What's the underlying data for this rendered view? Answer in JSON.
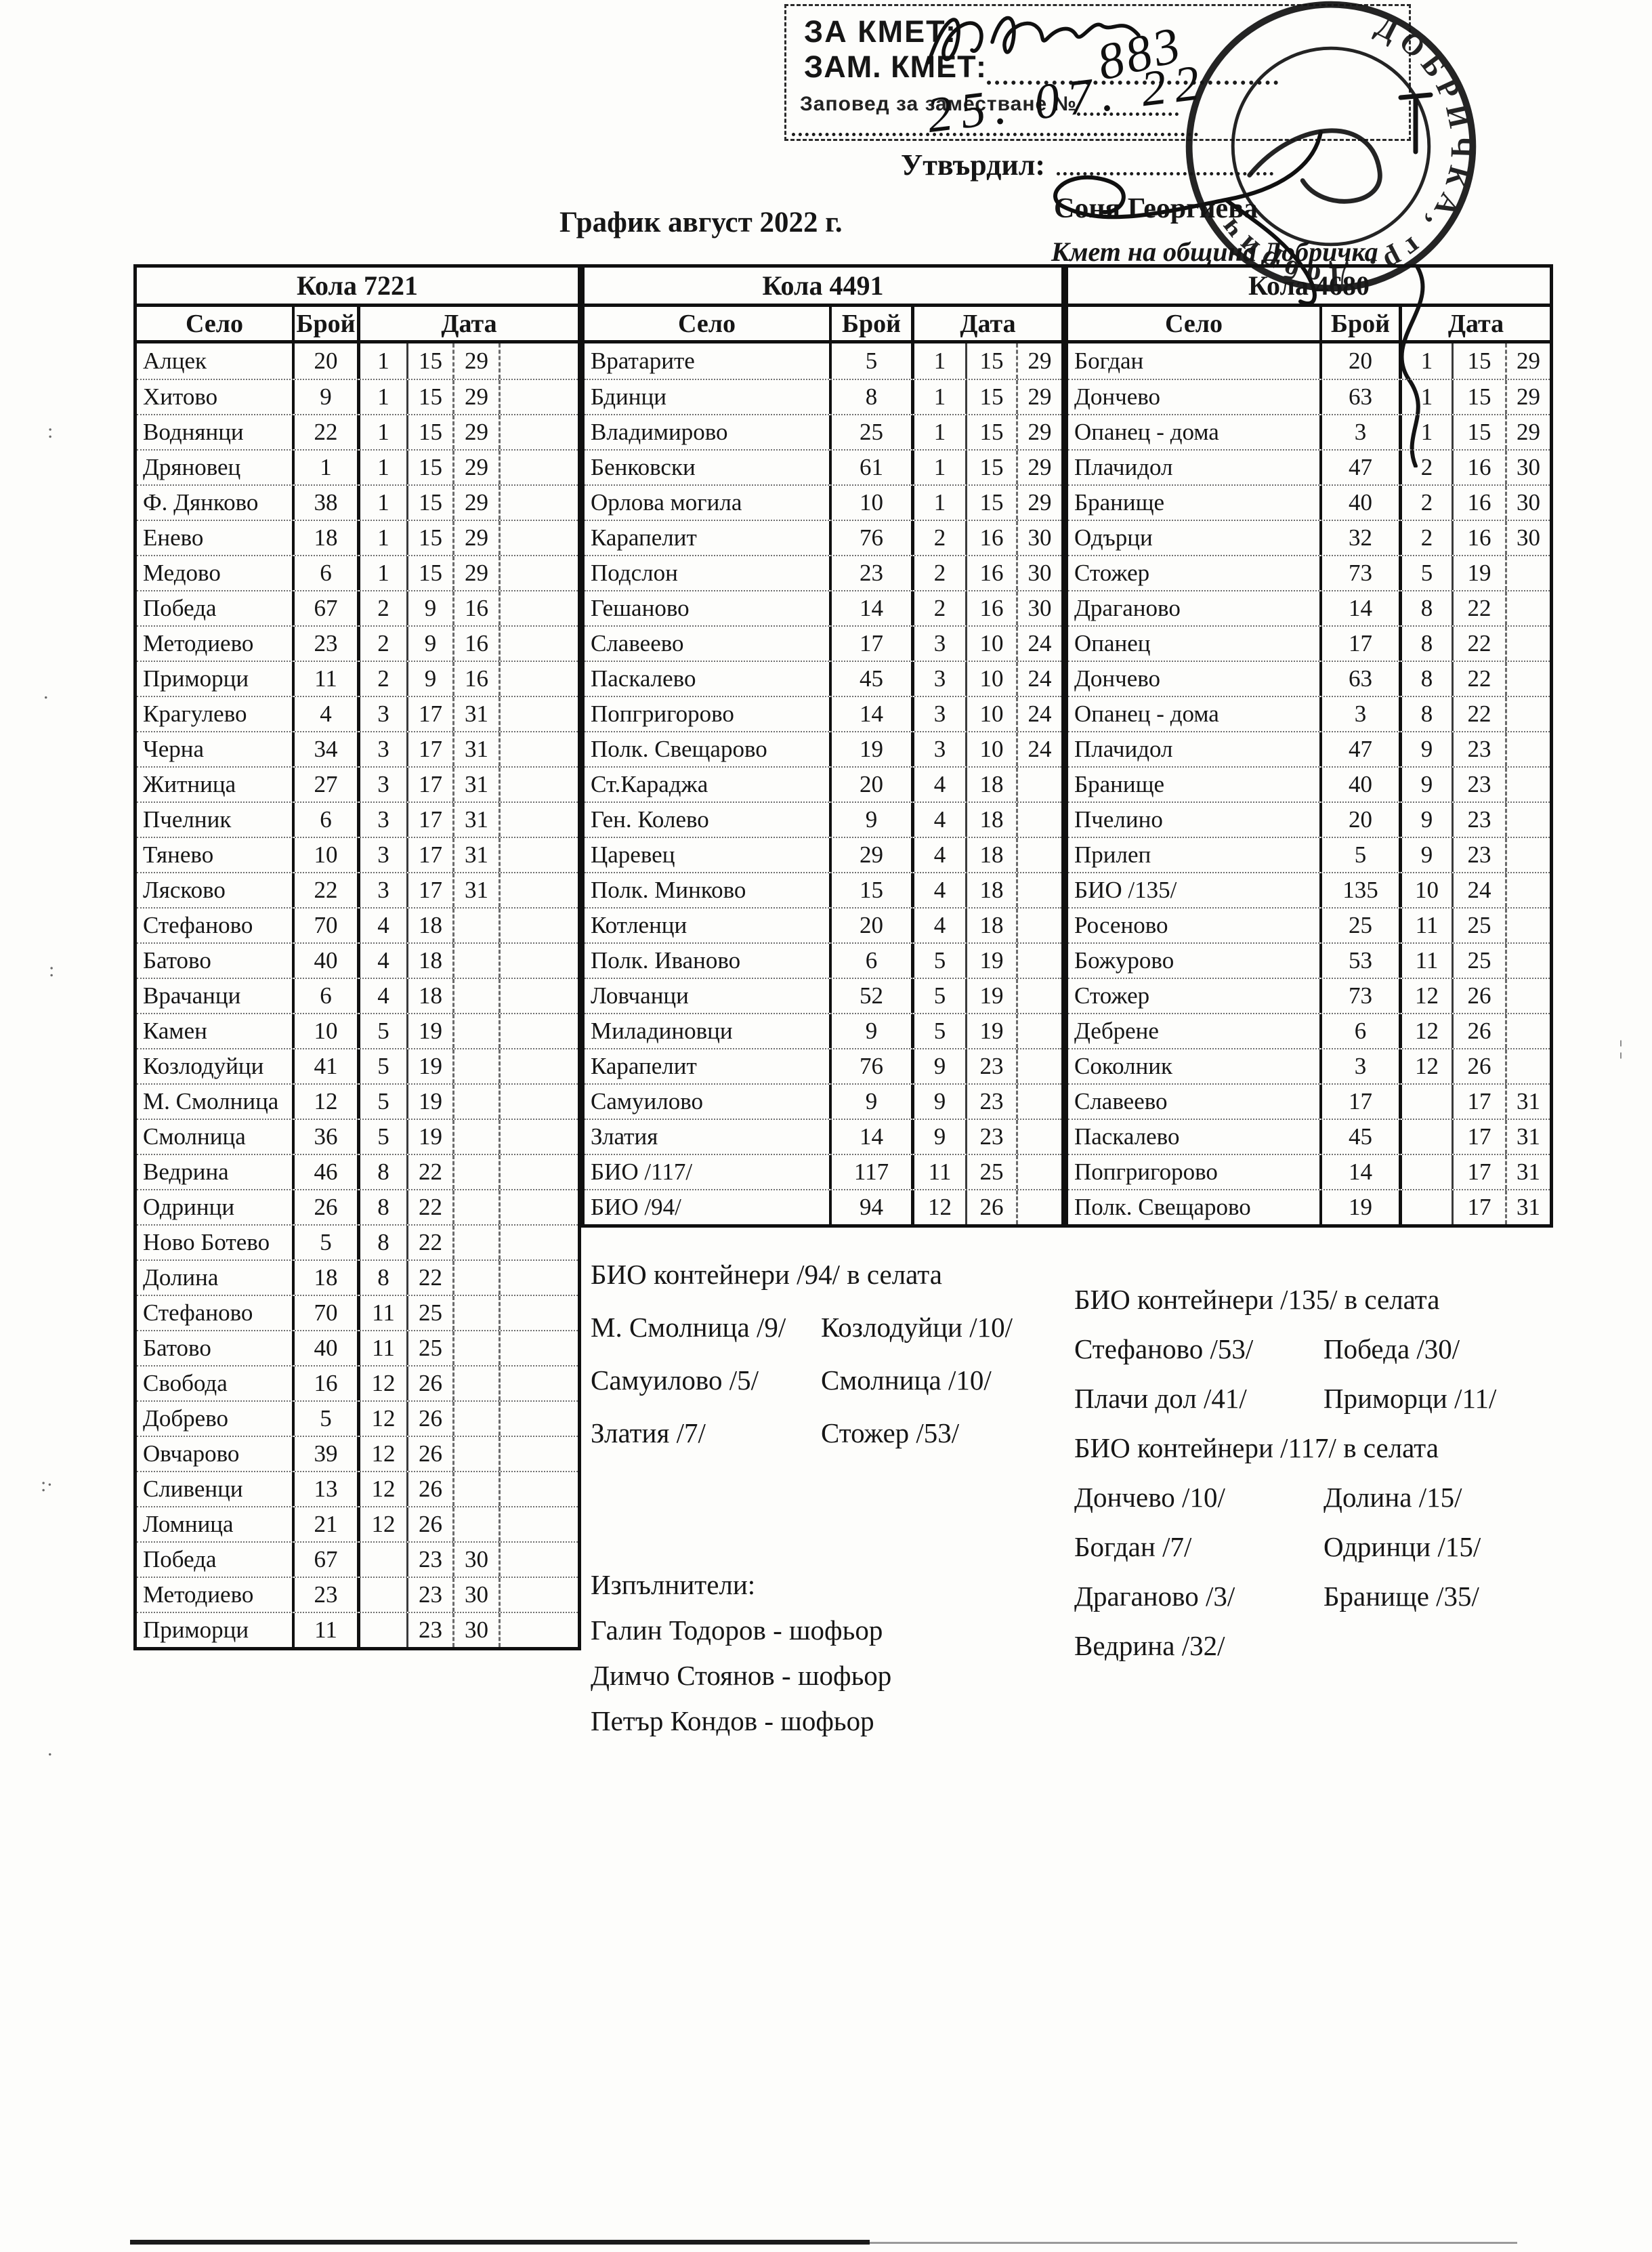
{
  "page": {
    "title": "График август 2022 г."
  },
  "stamp_box": {
    "line1": "ЗА КМЕТ:",
    "line2": "ЗАМ. КМЕТ:",
    "line3": "Заповед за заместване №"
  },
  "handwriting": {
    "order_no": "883",
    "date": "25. 07. 22"
  },
  "approval": {
    "label": "Утвърдил:",
    "name": "Соня Георгиева",
    "title": "Кмет  на община Добричка"
  },
  "round_stamp": {
    "ring_text": "ДОБРИЧКА, гр. Добрич"
  },
  "tables": [
    {
      "title": "Кола 7221",
      "columns": [
        "Село",
        "Брой",
        "Дата"
      ],
      "rows": [
        {
          "village": "Алцек",
          "count": "20",
          "dates": [
            "1",
            "15",
            "29",
            ""
          ]
        },
        {
          "village": "Хитово",
          "count": "9",
          "dates": [
            "1",
            "15",
            "29",
            ""
          ]
        },
        {
          "village": "Воднянци",
          "count": "22",
          "dates": [
            "1",
            "15",
            "29",
            ""
          ]
        },
        {
          "village": "Дряновец",
          "count": "1",
          "dates": [
            "1",
            "15",
            "29",
            ""
          ]
        },
        {
          "village": "Ф. Дянково",
          "count": "38",
          "dates": [
            "1",
            "15",
            "29",
            ""
          ]
        },
        {
          "village": "Енево",
          "count": "18",
          "dates": [
            "1",
            "15",
            "29",
            ""
          ]
        },
        {
          "village": "Медово",
          "count": "6",
          "dates": [
            "1",
            "15",
            "29",
            ""
          ]
        },
        {
          "village": "Победа",
          "count": "67",
          "dates": [
            "2",
            "9",
            "16",
            ""
          ]
        },
        {
          "village": "Методиево",
          "count": "23",
          "dates": [
            "2",
            "9",
            "16",
            ""
          ]
        },
        {
          "village": "Приморци",
          "count": "11",
          "dates": [
            "2",
            "9",
            "16",
            ""
          ]
        },
        {
          "village": "Крагулево",
          "count": "4",
          "dates": [
            "3",
            "17",
            "31",
            ""
          ]
        },
        {
          "village": "Черна",
          "count": "34",
          "dates": [
            "3",
            "17",
            "31",
            ""
          ]
        },
        {
          "village": "Житница",
          "count": "27",
          "dates": [
            "3",
            "17",
            "31",
            ""
          ]
        },
        {
          "village": "Пчелник",
          "count": "6",
          "dates": [
            "3",
            "17",
            "31",
            ""
          ]
        },
        {
          "village": "Тянево",
          "count": "10",
          "dates": [
            "3",
            "17",
            "31",
            ""
          ]
        },
        {
          "village": "Лясково",
          "count": "22",
          "dates": [
            "3",
            "17",
            "31",
            ""
          ]
        },
        {
          "village": "Стефаново",
          "count": "70",
          "dates": [
            "4",
            "18",
            "",
            ""
          ]
        },
        {
          "village": "Батово",
          "count": "40",
          "dates": [
            "4",
            "18",
            "",
            ""
          ]
        },
        {
          "village": "Врачанци",
          "count": "6",
          "dates": [
            "4",
            "18",
            "",
            ""
          ]
        },
        {
          "village": "Камен",
          "count": "10",
          "dates": [
            "5",
            "19",
            "",
            ""
          ]
        },
        {
          "village": "Козлодуйци",
          "count": "41",
          "dates": [
            "5",
            "19",
            "",
            ""
          ]
        },
        {
          "village": "М. Смолница",
          "count": "12",
          "dates": [
            "5",
            "19",
            "",
            ""
          ]
        },
        {
          "village": "Смолница",
          "count": "36",
          "dates": [
            "5",
            "19",
            "",
            ""
          ]
        },
        {
          "village": "Ведрина",
          "count": "46",
          "dates": [
            "8",
            "22",
            "",
            ""
          ]
        },
        {
          "village": "Одринци",
          "count": "26",
          "dates": [
            "8",
            "22",
            "",
            ""
          ]
        },
        {
          "village": "Ново Ботево",
          "count": "5",
          "dates": [
            "8",
            "22",
            "",
            ""
          ]
        },
        {
          "village": "Долина",
          "count": "18",
          "dates": [
            "8",
            "22",
            "",
            ""
          ]
        },
        {
          "village": "Стефаново",
          "count": "70",
          "dates": [
            "11",
            "25",
            "",
            ""
          ]
        },
        {
          "village": "Батово",
          "count": "40",
          "dates": [
            "11",
            "25",
            "",
            ""
          ]
        },
        {
          "village": "Свобода",
          "count": "16",
          "dates": [
            "12",
            "26",
            "",
            ""
          ]
        },
        {
          "village": "Добрево",
          "count": "5",
          "dates": [
            "12",
            "26",
            "",
            ""
          ]
        },
        {
          "village": "Овчарово",
          "count": "39",
          "dates": [
            "12",
            "26",
            "",
            ""
          ]
        },
        {
          "village": "Сливенци",
          "count": "13",
          "dates": [
            "12",
            "26",
            "",
            ""
          ]
        },
        {
          "village": "Ломница",
          "count": "21",
          "dates": [
            "12",
            "26",
            "",
            ""
          ]
        },
        {
          "village": "Победа",
          "count": "67",
          "dates": [
            "",
            "23",
            "30",
            ""
          ]
        },
        {
          "village": "Методиево",
          "count": "23",
          "dates": [
            "",
            "23",
            "30",
            ""
          ]
        },
        {
          "village": "Приморци",
          "count": "11",
          "dates": [
            "",
            "23",
            "30",
            ""
          ]
        }
      ]
    },
    {
      "title": "Кола 4491",
      "columns": [
        "Село",
        "Брой",
        "Дата"
      ],
      "rows": [
        {
          "village": "Вратарите",
          "count": "5",
          "dates": [
            "1",
            "15",
            "29"
          ]
        },
        {
          "village": "Бдинци",
          "count": "8",
          "dates": [
            "1",
            "15",
            "29"
          ]
        },
        {
          "village": "Владимирово",
          "count": "25",
          "dates": [
            "1",
            "15",
            "29"
          ]
        },
        {
          "village": "Бенковски",
          "count": "61",
          "dates": [
            "1",
            "15",
            "29"
          ]
        },
        {
          "village": "Орлова могила",
          "count": "10",
          "dates": [
            "1",
            "15",
            "29"
          ]
        },
        {
          "village": "Карапелит",
          "count": "76",
          "dates": [
            "2",
            "16",
            "30"
          ]
        },
        {
          "village": "Подслон",
          "count": "23",
          "dates": [
            "2",
            "16",
            "30"
          ]
        },
        {
          "village": "Гешаново",
          "count": "14",
          "dates": [
            "2",
            "16",
            "30"
          ]
        },
        {
          "village": "Славеево",
          "count": "17",
          "dates": [
            "3",
            "10",
            "24"
          ]
        },
        {
          "village": "Паскалево",
          "count": "45",
          "dates": [
            "3",
            "10",
            "24"
          ]
        },
        {
          "village": "Попгригорово",
          "count": "14",
          "dates": [
            "3",
            "10",
            "24"
          ]
        },
        {
          "village": "Полк. Свещарово",
          "count": "19",
          "dates": [
            "3",
            "10",
            "24"
          ]
        },
        {
          "village": "Ст.Караджа",
          "count": "20",
          "dates": [
            "4",
            "18",
            ""
          ]
        },
        {
          "village": "Ген. Колево",
          "count": "9",
          "dates": [
            "4",
            "18",
            ""
          ]
        },
        {
          "village": "Царевец",
          "count": "29",
          "dates": [
            "4",
            "18",
            ""
          ]
        },
        {
          "village": "Полк. Минково",
          "count": "15",
          "dates": [
            "4",
            "18",
            ""
          ]
        },
        {
          "village": "Котленци",
          "count": "20",
          "dates": [
            "4",
            "18",
            ""
          ]
        },
        {
          "village": "Полк. Иваново",
          "count": "6",
          "dates": [
            "5",
            "19",
            ""
          ]
        },
        {
          "village": "Ловчанци",
          "count": "52",
          "dates": [
            "5",
            "19",
            ""
          ]
        },
        {
          "village": "Миладиновци",
          "count": "9",
          "dates": [
            "5",
            "19",
            ""
          ]
        },
        {
          "village": "Карапелит",
          "count": "76",
          "dates": [
            "9",
            "23",
            ""
          ]
        },
        {
          "village": "Самуилово",
          "count": "9",
          "dates": [
            "9",
            "23",
            ""
          ]
        },
        {
          "village": "Златия",
          "count": "14",
          "dates": [
            "9",
            "23",
            ""
          ]
        },
        {
          "village": "БИО /117/",
          "count": "117",
          "dates": [
            "11",
            "25",
            ""
          ]
        },
        {
          "village": "БИО /94/",
          "count": "94",
          "dates": [
            "12",
            "26",
            ""
          ]
        }
      ]
    },
    {
      "title": "Кола 4680",
      "columns": [
        "Село",
        "Брой",
        "Дата"
      ],
      "rows": [
        {
          "village": "Богдан",
          "count": "20",
          "dates": [
            "1",
            "15",
            "29"
          ]
        },
        {
          "village": "Дончево",
          "count": "63",
          "dates": [
            "1",
            "15",
            "29"
          ]
        },
        {
          "village": "Опанец - дома",
          "count": "3",
          "dates": [
            "1",
            "15",
            "29"
          ]
        },
        {
          "village": "Плачидол",
          "count": "47",
          "dates": [
            "2",
            "16",
            "30"
          ]
        },
        {
          "village": "Бранище",
          "count": "40",
          "dates": [
            "2",
            "16",
            "30"
          ]
        },
        {
          "village": "Одърци",
          "count": "32",
          "dates": [
            "2",
            "16",
            "30"
          ]
        },
        {
          "village": "Стожер",
          "count": "73",
          "dates": [
            "5",
            "19",
            ""
          ]
        },
        {
          "village": "Драганово",
          "count": "14",
          "dates": [
            "8",
            "22",
            ""
          ]
        },
        {
          "village": "Опанец",
          "count": "17",
          "dates": [
            "8",
            "22",
            ""
          ]
        },
        {
          "village": "Дончево",
          "count": "63",
          "dates": [
            "8",
            "22",
            ""
          ]
        },
        {
          "village": "Опанец - дома",
          "count": "3",
          "dates": [
            "8",
            "22",
            ""
          ]
        },
        {
          "village": "Плачидол",
          "count": "47",
          "dates": [
            "9",
            "23",
            ""
          ]
        },
        {
          "village": "Бранище",
          "count": "40",
          "dates": [
            "9",
            "23",
            ""
          ]
        },
        {
          "village": "Пчелино",
          "count": "20",
          "dates": [
            "9",
            "23",
            ""
          ]
        },
        {
          "village": "Прилеп",
          "count": "5",
          "dates": [
            "9",
            "23",
            ""
          ]
        },
        {
          "village": "БИО /135/",
          "count": "135",
          "dates": [
            "10",
            "24",
            ""
          ]
        },
        {
          "village": "Росеново",
          "count": "25",
          "dates": [
            "11",
            "25",
            ""
          ]
        },
        {
          "village": "Божурово",
          "count": "53",
          "dates": [
            "11",
            "25",
            ""
          ]
        },
        {
          "village": "Стожер",
          "count": "73",
          "dates": [
            "12",
            "26",
            ""
          ]
        },
        {
          "village": "Дебрене",
          "count": "6",
          "dates": [
            "12",
            "26",
            ""
          ]
        },
        {
          "village": "Соколник",
          "count": "3",
          "dates": [
            "12",
            "26",
            ""
          ]
        },
        {
          "village": "Славеево",
          "count": "17",
          "dates": [
            "",
            "17",
            "31"
          ]
        },
        {
          "village": "Паскалево",
          "count": "45",
          "dates": [
            "",
            "17",
            "31"
          ]
        },
        {
          "village": "Попгригорово",
          "count": "14",
          "dates": [
            "",
            "17",
            "31"
          ]
        },
        {
          "village": "Полк. Свещарово",
          "count": "19",
          "dates": [
            "",
            "17",
            "31"
          ]
        }
      ]
    }
  ],
  "notes_mid": {
    "heading": "БИО контейнери /94/ в селата",
    "rows": [
      [
        "М. Смолница /9/",
        "Козлодуйци /10/"
      ],
      [
        "Самуилово /5/",
        "Смолница /10/"
      ],
      [
        "Златия /7/",
        "Стожер /53/"
      ]
    ]
  },
  "notes_right": {
    "heading_135": "БИО контейнери /135/ в селата",
    "rows_135": [
      [
        "Стефаново /53/",
        "Победа /30/"
      ],
      [
        "Плачи дол /41/",
        "Приморци /11/"
      ]
    ],
    "heading_117": "БИО контейнери /117/ в селата",
    "rows_117": [
      [
        "Дончево /10/",
        "Долина /15/"
      ],
      [
        "Богдан /7/",
        "Одринци /15/"
      ],
      [
        "Драганово /3/",
        "Бранище /35/"
      ],
      [
        "Ведрина /32/",
        ""
      ]
    ]
  },
  "executors": {
    "heading": "Изпълнители:",
    "items": [
      "Галин Тодоров - шофьор",
      "Димчо Стоянов - шофьор",
      "Петър Кондов - шофьор"
    ]
  }
}
